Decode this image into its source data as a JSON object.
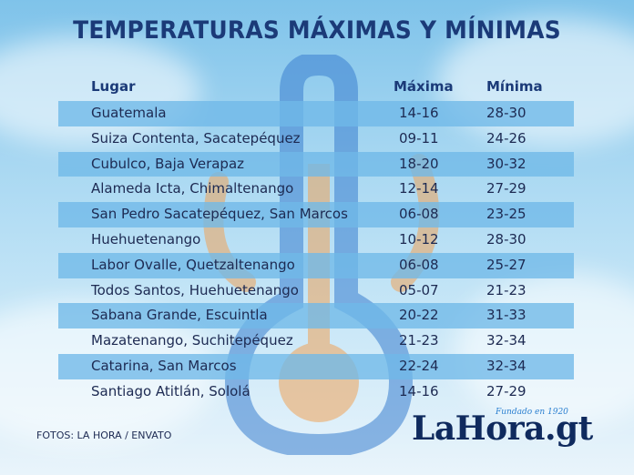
{
  "title": "TEMPERATURAS MÁXIMAS Y MÍNIMAS",
  "headers": {
    "lugar": "Lugar",
    "maxima": "Máxima",
    "minima": "Mínima"
  },
  "rows": [
    {
      "lugar": "Guatemala",
      "maxima": "14-16",
      "minima": "28-30"
    },
    {
      "lugar": "Suiza Contenta, Sacatepéquez",
      "maxima": "09-11",
      "minima": "24-26"
    },
    {
      "lugar": "Cubulco, Baja Verapaz",
      "maxima": "18-20",
      "minima": "30-32"
    },
    {
      "lugar": "Alameda Icta, Chimaltenango",
      "maxima": "12-14",
      "minima": "27-29"
    },
    {
      "lugar": "San Pedro Sacatepéquez, San Marcos",
      "maxima": "06-08",
      "minima": "23-25"
    },
    {
      "lugar": "Huehuetenango",
      "maxima": "10-12",
      "minima": "28-30"
    },
    {
      "lugar": "Labor Ovalle, Quetzaltenango",
      "maxima": "06-08",
      "minima": "25-27"
    },
    {
      "lugar": "Todos Santos, Huehuetenango",
      "maxima": "05-07",
      "minima": "21-23"
    },
    {
      "lugar": "Sabana Grande, Escuintla",
      "maxima": "20-22",
      "minima": "31-33"
    },
    {
      "lugar": "Mazatenango, Suchitepéquez",
      "maxima": "21-23",
      "minima": "32-34"
    },
    {
      "lugar": "Catarina, San Marcos",
      "maxima": "22-24",
      "minima": "32-34"
    },
    {
      "lugar": "Santiago Atitlán, Sololá",
      "maxima": "14-16",
      "minima": "27-29"
    }
  ],
  "credit": "FOTOS: LA HORA / ENVATO",
  "logo": {
    "name": "LaHora.gt",
    "tagline": "Fundado en 1920"
  },
  "colors": {
    "title": "#1b3a78",
    "row_shade": "#70b9e8",
    "text": "#1d2a52",
    "logo": "#0f2a5e",
    "accent": "#2a7fd0"
  }
}
